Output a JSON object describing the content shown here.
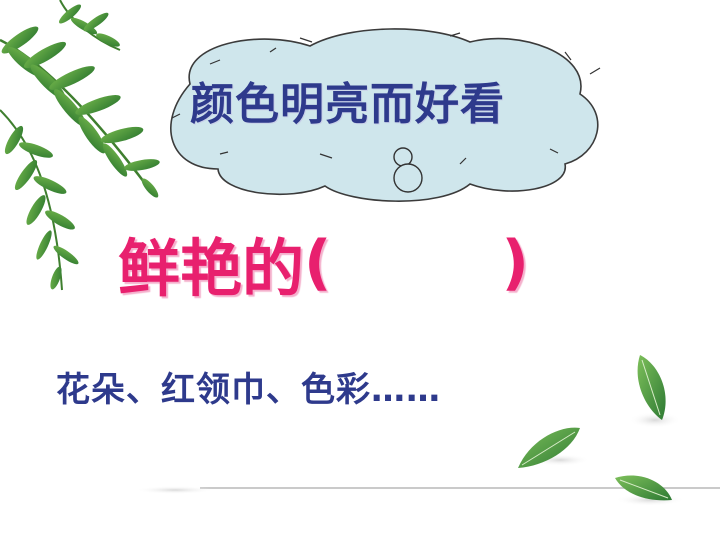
{
  "cloud": {
    "text": "颜色明亮而好看"
  },
  "main_line": {
    "word": "鲜艳的",
    "open_paren": "(",
    "close_paren": ")"
  },
  "examples": {
    "text": "花朵、红领巾、色彩……"
  },
  "colors": {
    "cloud_fill": "#cfe6ec",
    "cloud_text": "#2e3a8c",
    "pink_text": "#e8206e",
    "example_text": "#2e3a8c",
    "leaf_green": "#3f8f3a"
  },
  "icons": {
    "top_left": "fern-leaves-icon",
    "bottom_right": "scattered-leaves-icon",
    "cloud": "thought-cloud-icon"
  }
}
